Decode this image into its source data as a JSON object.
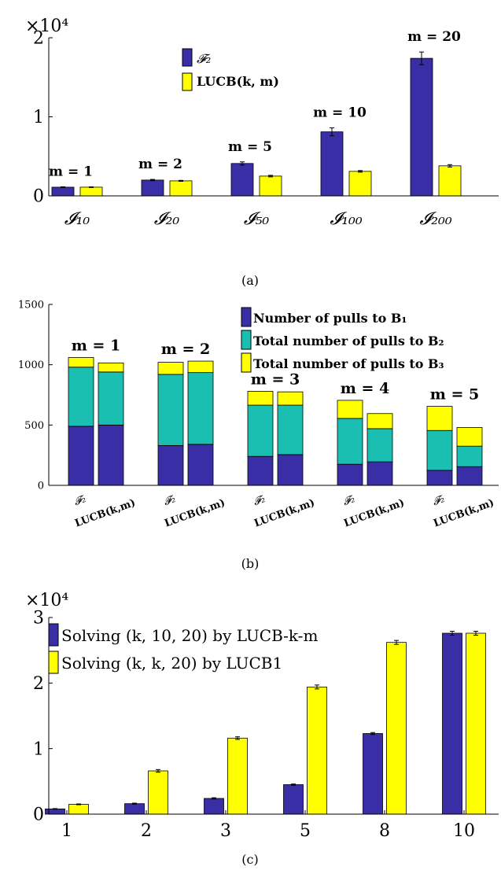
{
  "colors": {
    "blue": "#3a2ea6",
    "yellow": "#ffff00",
    "teal": "#1abfb2",
    "axis": "#000000",
    "errorbar": "#000000"
  },
  "chart_data": [
    {
      "type": "bar",
      "panel_caption": "(a)",
      "exponent_label": "×10⁴",
      "ylim": [
        0,
        2
      ],
      "yticks": [
        "0",
        "1",
        "2"
      ],
      "categories": [
        "𝓘₁₀",
        "𝓘₂₀",
        "𝓘₅₀",
        "𝓘₁₀₀",
        "𝓘₂₀₀"
      ],
      "series": [
        {
          "name": "𝓕₂",
          "values": [
            0.11,
            0.2,
            0.41,
            0.81,
            1.74
          ],
          "errors": [
            0.005,
            0.008,
            0.02,
            0.05,
            0.08
          ]
        },
        {
          "name": "LUCB(k, m)",
          "values": [
            0.11,
            0.19,
            0.25,
            0.31,
            0.38
          ],
          "errors": [
            0.004,
            0.006,
            0.01,
            0.01,
            0.015
          ]
        }
      ],
      "annotations": [
        "m = 1",
        "m = 2",
        "m = 5",
        "m = 10",
        "m = 20"
      ],
      "legend_position": "top-center",
      "grid": false
    },
    {
      "type": "bar",
      "stacked": true,
      "panel_caption": "(b)",
      "ylim": [
        0,
        1500
      ],
      "yticks": [
        "0",
        "500",
        "1000",
        "1500"
      ],
      "groups": [
        "m = 1",
        "m = 2",
        "m = 3",
        "m = 4",
        "m = 5"
      ],
      "bar_labels": [
        "𝓕₂",
        "LUCB(k,m)"
      ],
      "series": [
        {
          "name": "Number of pulls to B₁",
          "values": [
            [
              490,
              500
            ],
            [
              330,
              340
            ],
            [
              240,
              255
            ],
            [
              175,
              195
            ],
            [
              125,
              155
            ]
          ]
        },
        {
          "name": "Total number of pulls to B₂",
          "values": [
            [
              490,
              440
            ],
            [
              590,
              595
            ],
            [
              425,
              410
            ],
            [
              380,
              275
            ],
            [
              330,
              170
            ]
          ]
        },
        {
          "name": "Total number of pulls to B₃",
          "values": [
            [
              80,
              75
            ],
            [
              100,
              95
            ],
            [
              115,
              110
            ],
            [
              150,
              125
            ],
            [
              200,
              155
            ]
          ]
        }
      ],
      "legend_position": "top-right",
      "grid": false
    },
    {
      "type": "bar",
      "panel_caption": "(c)",
      "exponent_label": "×10⁴",
      "ylim": [
        0,
        3
      ],
      "yticks": [
        "0",
        "1",
        "2",
        "3"
      ],
      "categories": [
        "1",
        "2",
        "3",
        "5",
        "8",
        "10"
      ],
      "series": [
        {
          "name": "Solving (k, 10, 20) by LUCB-k-m",
          "values": [
            0.08,
            0.16,
            0.24,
            0.45,
            1.23,
            2.76
          ],
          "errors": [
            0.005,
            0.008,
            0.01,
            0.01,
            0.015,
            0.03
          ]
        },
        {
          "name": "Solving (k, k, 20) by LUCB1",
          "values": [
            0.15,
            0.66,
            1.16,
            1.94,
            2.62,
            2.76
          ],
          "errors": [
            0.006,
            0.02,
            0.02,
            0.03,
            0.03,
            0.03
          ]
        }
      ],
      "legend_position": "top-left",
      "grid": false
    }
  ]
}
